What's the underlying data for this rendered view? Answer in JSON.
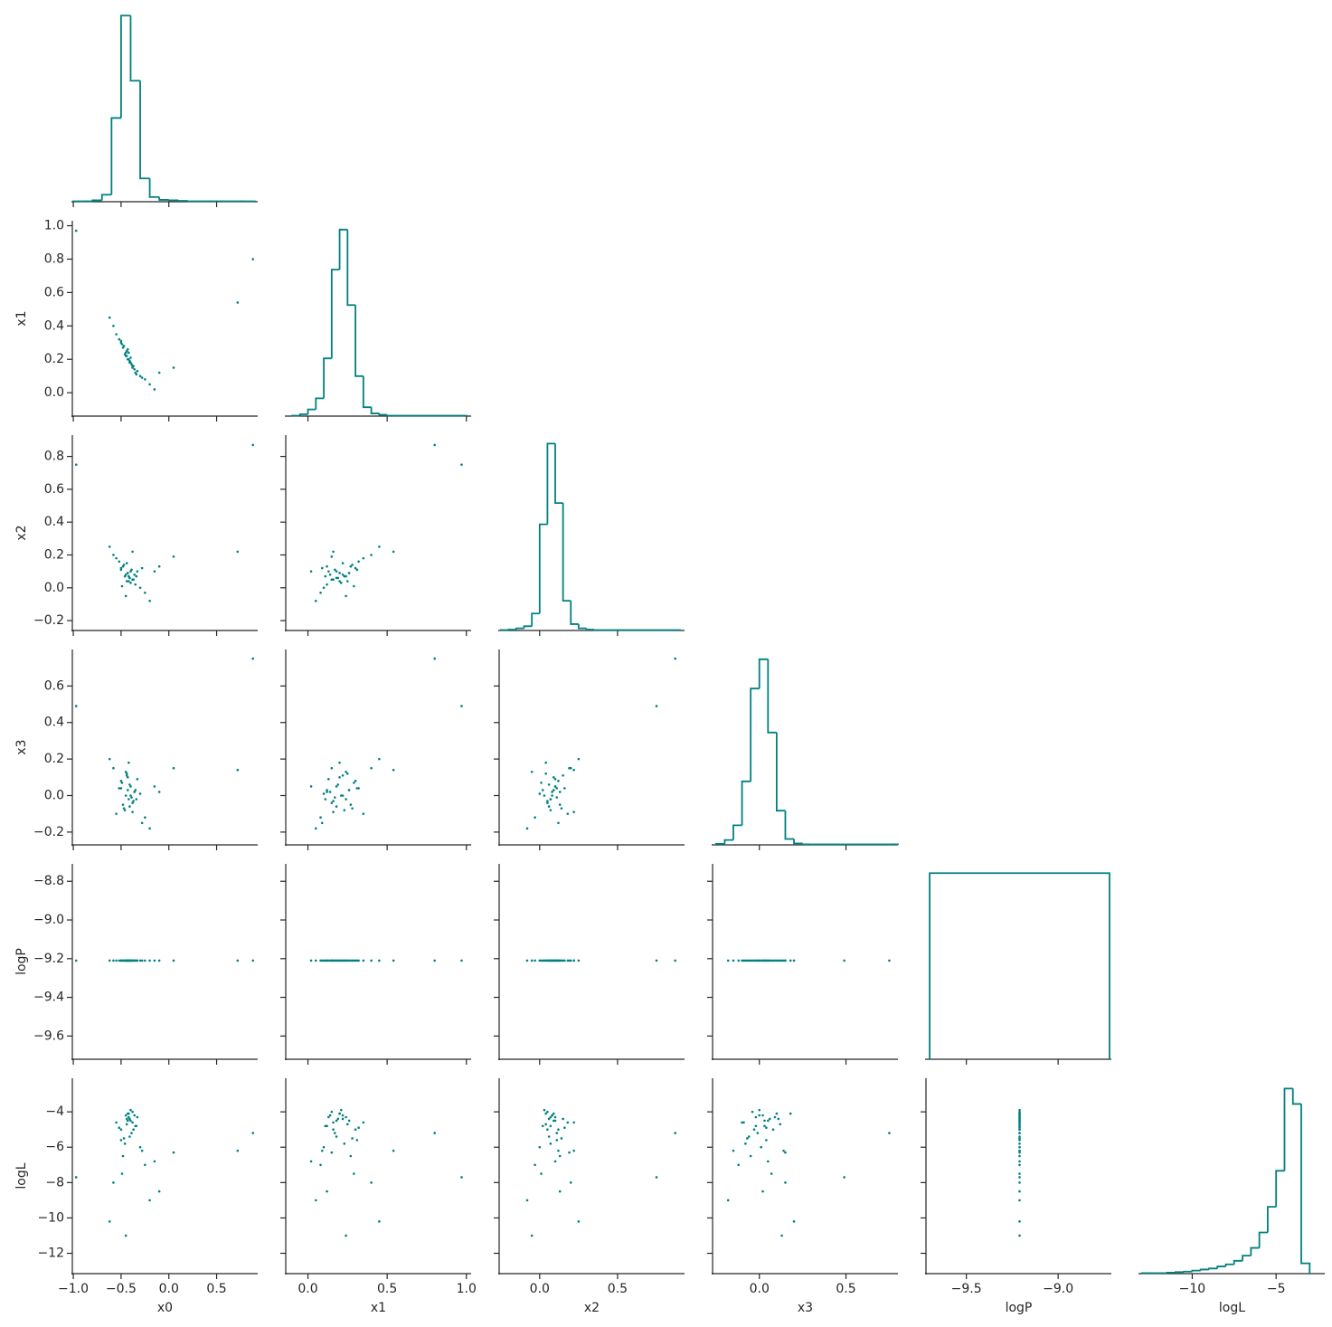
{
  "chart_data": {
    "type": "pair",
    "color": "#008080",
    "variables": [
      {
        "name": "x0",
        "lim": [
          -1.01,
          0.93
        ],
        "xticks": [
          {
            "value": -1.0,
            "label": "−1.0"
          },
          {
            "value": -0.5,
            "label": "−0.5"
          },
          {
            "value": 0.0,
            "label": "0.0"
          },
          0.5
        ],
        "yticks": [],
        "samples": [
          -0.45,
          -0.4,
          -0.38,
          -0.5,
          -0.42,
          -0.35,
          -0.47,
          -0.43,
          -0.3,
          -0.55,
          -0.41,
          -0.39,
          -0.44,
          -0.48,
          -0.36,
          -0.25,
          -0.52,
          -0.46,
          -0.33,
          -0.4,
          -0.58,
          -0.28,
          -0.43,
          -0.37,
          -0.49,
          -0.2,
          -0.44,
          -0.41,
          -0.62,
          -0.15,
          -0.38,
          -0.45,
          -0.34,
          -0.5,
          -0.42,
          -0.1,
          0.05,
          0.72,
          0.88,
          -0.97
        ],
        "bins": [
          -1.0,
          -0.9,
          -0.8,
          -0.7,
          -0.6,
          -0.5,
          -0.4,
          -0.3,
          -0.2,
          -0.1,
          0.0,
          0.1,
          0.2,
          0.3,
          0.4,
          0.5,
          0.6,
          0.7,
          0.8,
          0.9
        ],
        "counts": [
          1,
          1,
          3,
          15,
          180,
          400,
          260,
          50,
          10,
          4,
          3,
          2,
          1,
          1,
          1,
          1,
          1,
          1,
          1
        ],
        "hist_ylim": [
          0,
          420
        ]
      },
      {
        "name": "x1",
        "lim": [
          -0.14,
          1.03
        ],
        "xticks": [
          {
            "value": 0.0,
            "label": "0.0"
          },
          0.5,
          {
            "value": 1.0,
            "label": "1.0"
          }
        ],
        "yticks": [
          {
            "value": 0.0,
            "label": "0.0"
          },
          0.2,
          0.4,
          0.6,
          0.8,
          {
            "value": 1.0,
            "label": "1.0"
          }
        ],
        "samples": [
          0.22,
          0.18,
          0.15,
          0.3,
          0.24,
          0.12,
          0.28,
          0.2,
          0.1,
          0.35,
          0.19,
          0.17,
          0.25,
          0.27,
          0.14,
          0.08,
          0.32,
          0.23,
          0.13,
          0.21,
          0.4,
          0.09,
          0.26,
          0.16,
          0.29,
          0.05,
          0.22,
          0.18,
          0.45,
          0.02,
          0.16,
          0.24,
          0.11,
          0.31,
          0.2,
          0.12,
          0.15,
          0.54,
          0.8,
          0.97
        ],
        "bins": [
          -0.1,
          -0.05,
          0.0,
          0.05,
          0.1,
          0.15,
          0.2,
          0.25,
          0.3,
          0.35,
          0.4,
          0.45,
          0.5,
          0.55,
          0.6,
          0.65,
          0.7,
          0.75,
          0.8,
          0.85,
          0.9,
          0.95,
          1.0
        ],
        "counts": [
          1,
          4,
          15,
          40,
          130,
          330,
          420,
          250,
          90,
          20,
          6,
          3,
          1,
          1,
          1,
          1,
          1,
          1,
          1,
          1,
          1,
          1
        ],
        "hist_ylim": [
          0,
          440
        ]
      },
      {
        "name": "x2",
        "lim": [
          -0.26,
          0.93
        ],
        "xticks": [
          {
            "value": 0.0,
            "label": "0.0"
          },
          0.5
        ],
        "yticks": [
          {
            "value": -0.2,
            "label": "−0.2"
          },
          {
            "value": 0.0,
            "label": "0.0"
          },
          0.2,
          0.4,
          0.6,
          0.8
        ],
        "samples": [
          0.08,
          0.1,
          0.05,
          0.12,
          0.07,
          0.02,
          0.14,
          0.09,
          0.0,
          0.18,
          0.06,
          0.11,
          0.04,
          0.13,
          0.08,
          -0.03,
          0.16,
          0.07,
          0.1,
          0.03,
          0.2,
          0.12,
          0.09,
          0.05,
          0.01,
          -0.08,
          0.15,
          0.06,
          0.25,
          0.1,
          0.22,
          -0.05,
          0.07,
          0.11,
          0.04,
          0.13,
          0.19,
          0.22,
          0.87,
          0.75
        ],
        "bins": [
          -0.25,
          -0.2,
          -0.15,
          -0.1,
          -0.05,
          0.0,
          0.05,
          0.1,
          0.15,
          0.2,
          0.25,
          0.3,
          0.35,
          0.4,
          0.45,
          0.5,
          0.55,
          0.6,
          0.65,
          0.7,
          0.75,
          0.8,
          0.85,
          0.9
        ],
        "counts": [
          1,
          2,
          5,
          10,
          40,
          250,
          440,
          300,
          70,
          15,
          5,
          2,
          1,
          1,
          1,
          1,
          1,
          1,
          1,
          1,
          1,
          1,
          1
        ],
        "hist_ylim": [
          0,
          460
        ]
      },
      {
        "name": "x3",
        "lim": [
          -0.27,
          0.8
        ],
        "xticks": [
          {
            "value": 0.0,
            "label": "0.0"
          },
          0.5
        ],
        "yticks": [
          {
            "value": -0.2,
            "label": "−0.2"
          },
          {
            "value": 0.0,
            "label": "0.0"
          },
          0.2,
          0.4,
          0.6
        ],
        "samples": [
          0.0,
          0.05,
          -0.04,
          0.08,
          -0.02,
          0.03,
          -0.07,
          0.1,
          0.01,
          -0.1,
          0.06,
          -0.01,
          0.12,
          -0.05,
          0.02,
          -0.12,
          0.04,
          -0.08,
          0.09,
          0.0,
          0.15,
          -0.15,
          0.03,
          -0.03,
          0.07,
          -0.18,
          0.11,
          -0.06,
          0.2,
          0.05,
          -0.09,
          0.13,
          -0.02,
          0.04,
          0.18,
          0.02,
          0.15,
          0.14,
          0.75,
          0.49
        ],
        "bins": [
          -0.25,
          -0.2,
          -0.15,
          -0.1,
          -0.05,
          0.0,
          0.05,
          0.1,
          0.15,
          0.2,
          0.25,
          0.3,
          0.35,
          0.4,
          0.45,
          0.5,
          0.55,
          0.6,
          0.65,
          0.7,
          0.75,
          0.8
        ],
        "counts": [
          2,
          10,
          40,
          130,
          320,
          380,
          230,
          70,
          12,
          3,
          1,
          1,
          1,
          1,
          1,
          1,
          1,
          1,
          1,
          1,
          1
        ],
        "hist_ylim": [
          0,
          400
        ]
      },
      {
        "name": "logP",
        "lim": [
          -9.72,
          -8.71
        ],
        "xticks": [
          {
            "value": -9.5,
            "label": "−9.5"
          },
          {
            "value": -9.0,
            "label": "−9.0"
          }
        ],
        "yticks": [
          {
            "value": -9.6,
            "label": "−9.6"
          },
          {
            "value": -9.4,
            "label": "−9.4"
          },
          {
            "value": -9.2,
            "label": "−9.2"
          },
          {
            "value": -9.0,
            "label": "−9.0"
          },
          {
            "value": -8.8,
            "label": "−8.8"
          }
        ],
        "samples": [
          -9.21,
          -9.21,
          -9.21,
          -9.21,
          -9.21,
          -9.21,
          -9.21,
          -9.21,
          -9.21,
          -9.21,
          -9.21,
          -9.21,
          -9.21,
          -9.21,
          -9.21,
          -9.21,
          -9.21,
          -9.21,
          -9.21,
          -9.21,
          -9.21,
          -9.21,
          -9.21,
          -9.21,
          -9.21,
          -9.21,
          -9.21,
          -9.21,
          -9.21,
          -9.21,
          -9.21,
          -9.21,
          -9.21,
          -9.21,
          -9.21,
          -9.21,
          -9.21,
          -9.21,
          -9.21,
          -9.21
        ],
        "bins": [
          -9.7,
          -8.72
        ],
        "counts": [
          1
        ],
        "hist_ylim": [
          0,
          1.05
        ]
      },
      {
        "name": "logL",
        "lim": [
          -13.15,
          -2.1
        ],
        "xticks": [
          {
            "value": -10,
            "label": "−10"
          },
          {
            "value": -5,
            "label": "−5"
          }
        ],
        "yticks": [
          {
            "value": -12,
            "label": "−12"
          },
          {
            "value": -10,
            "label": "−10"
          },
          {
            "value": -8,
            "label": "−8"
          },
          {
            "value": -6,
            "label": "−6"
          },
          {
            "value": -4,
            "label": "−4"
          }
        ],
        "samples": [
          -4.2,
          -4.5,
          -4.0,
          -5.0,
          -4.3,
          -4.8,
          -5.5,
          -4.1,
          -6.0,
          -4.6,
          -4.4,
          -5.2,
          -4.7,
          -6.5,
          -4.2,
          -7.0,
          -4.9,
          -5.8,
          -4.3,
          -3.9,
          -8.0,
          -6.2,
          -4.5,
          -5.0,
          -7.5,
          -9.0,
          -4.4,
          -5.4,
          -10.2,
          -6.8,
          -4.6,
          -11.0,
          -4.8,
          -5.6,
          -4.1,
          -8.5,
          -6.3,
          -6.2,
          -5.2,
          -7.7
        ],
        "bins": [
          -13,
          -12.5,
          -12,
          -11.5,
          -11,
          -10.5,
          -10,
          -9.5,
          -9,
          -8.5,
          -8,
          -7.5,
          -7,
          -6.5,
          -6,
          -5.5,
          -5,
          -4.5,
          -4,
          -3.5,
          -3
        ],
        "counts": [
          1,
          1,
          1,
          2,
          3,
          4,
          6,
          8,
          10,
          14,
          18,
          25,
          35,
          50,
          80,
          130,
          200,
          360,
          330,
          20
        ],
        "hist_ylim": [
          0,
          380
        ]
      }
    ]
  }
}
